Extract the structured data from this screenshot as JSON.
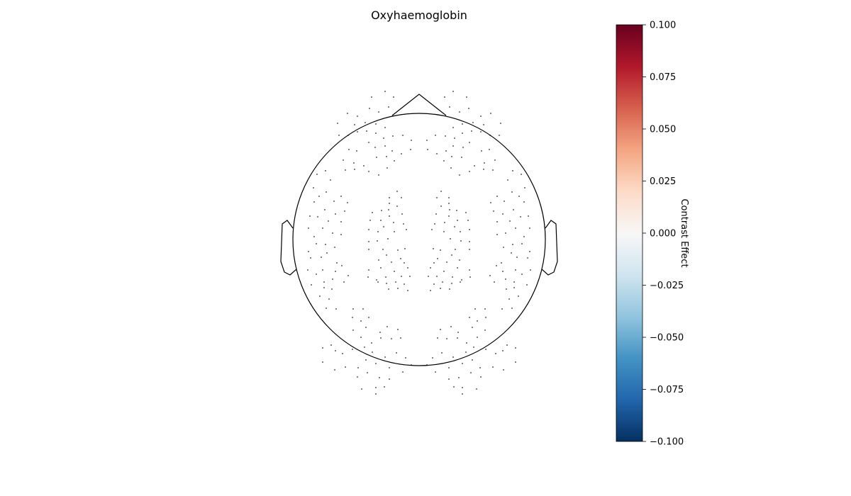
{
  "chart_data": {
    "type": "heatmap",
    "subtype": "topomap",
    "title": "Oxyhaemoglobin",
    "colorbar": {
      "label": "Contrast Effect",
      "colormap": "RdBu_r",
      "range": [
        -0.1,
        0.1
      ],
      "ticks": [
        "0.100",
        "0.075",
        "0.050",
        "0.025",
        "0.000",
        "−0.025",
        "−0.050",
        "−0.075",
        "−0.100"
      ],
      "colors": [
        "#67001f",
        "#b2182b",
        "#d6604d",
        "#f4a582",
        "#fddbc7",
        "#f7f7f7",
        "#d1e5f0",
        "#92c5de",
        "#4393c3",
        "#2166ac",
        "#053061"
      ]
    },
    "all_channel_values": 0.0,
    "sensor_marker": "dot",
    "head_outline": true
  }
}
